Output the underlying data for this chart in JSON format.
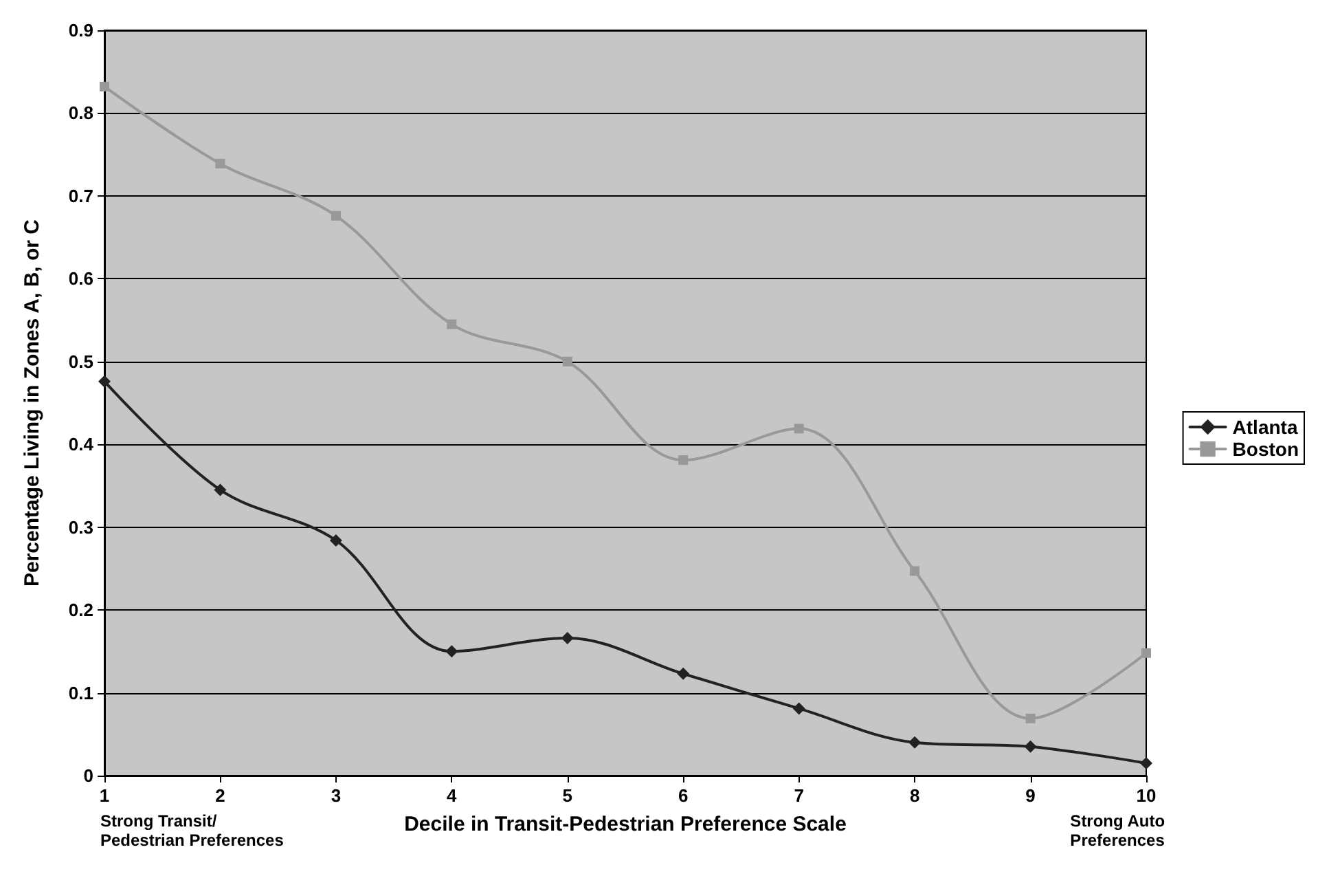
{
  "chart_data": {
    "type": "line",
    "xlabel": "Decile in Transit-Pedestrian Preference Scale",
    "ylabel": "Percentage Living in Zones A, B, or C",
    "x": [
      1,
      2,
      3,
      4,
      5,
      6,
      7,
      8,
      9,
      10
    ],
    "series": [
      {
        "name": "Atlanta",
        "color": "#222222",
        "marker": "diamond",
        "values": [
          0.476,
          0.345,
          0.284,
          0.15,
          0.166,
          0.123,
          0.081,
          0.04,
          0.035,
          0.015
        ]
      },
      {
        "name": "Boston",
        "color": "#999999",
        "marker": "square",
        "values": [
          0.832,
          0.739,
          0.676,
          0.545,
          0.5,
          0.381,
          0.419,
          0.247,
          0.069,
          0.148
        ]
      }
    ],
    "xlim": [
      1,
      10
    ],
    "xticks": [
      1,
      2,
      3,
      4,
      5,
      6,
      7,
      8,
      9,
      10
    ],
    "ylim": [
      0,
      0.9
    ],
    "yticks": [
      0,
      0.1,
      0.2,
      0.3,
      0.4,
      0.5,
      0.6,
      0.7,
      0.8,
      0.9
    ],
    "grid": "y",
    "legend": "right",
    "line_style": "solid",
    "annotations": [
      "Strong Transit/\nPedestrian Preferences",
      "Strong Auto\nPreferences"
    ]
  }
}
